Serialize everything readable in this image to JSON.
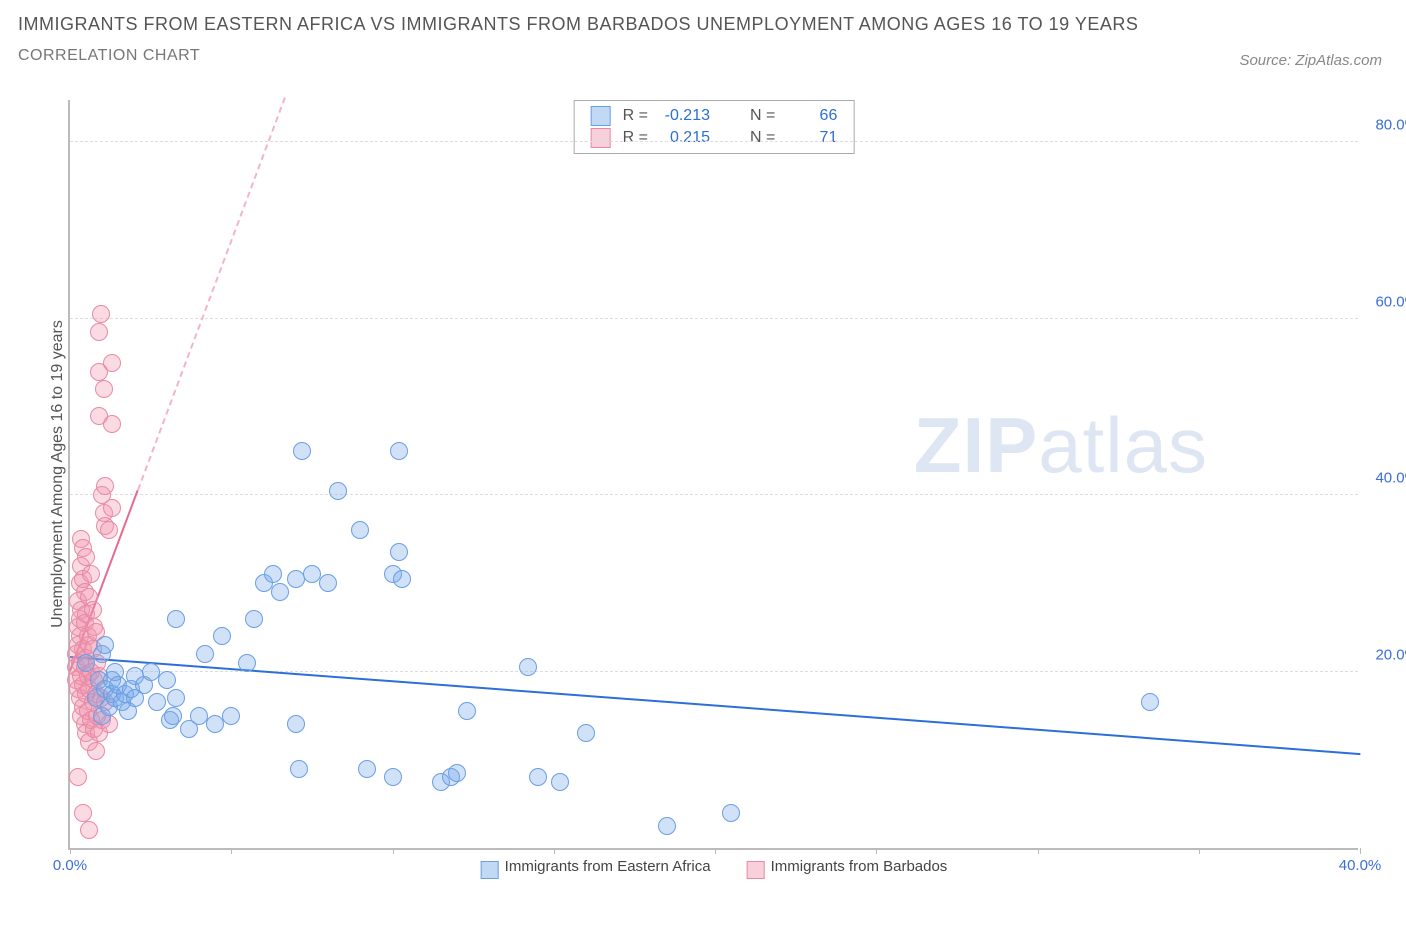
{
  "meta": {
    "title": "IMMIGRANTS FROM EASTERN AFRICA VS IMMIGRANTS FROM BARBADOS UNEMPLOYMENT AMONG AGES 16 TO 19 YEARS",
    "subtitle": "CORRELATION CHART",
    "source": "Source: ZipAtlas.com",
    "watermark_a": "ZIP",
    "watermark_b": "atlas"
  },
  "chart": {
    "type": "scatter",
    "background_color": "#ffffff",
    "grid_color": "#dddddd",
    "axis_color": "#bbbbbb",
    "xlim": [
      0,
      40
    ],
    "ylim": [
      0,
      85
    ],
    "xticks": [
      0,
      5,
      10,
      15,
      20,
      25,
      30,
      35,
      40
    ],
    "xtick_labels": {
      "0": "0.0%",
      "40": "40.0%"
    },
    "yticks": [
      20,
      40,
      60,
      80
    ],
    "ytick_labels": {
      "20": "20.0%",
      "40": "40.0%",
      "60": "60.0%",
      "80": "80.0%"
    },
    "ylabel": "Unemployment Among Ages 16 to 19 years",
    "marker_radius": 9,
    "series": [
      {
        "key": "blue",
        "label": "Immigrants from Eastern Africa",
        "color_fill": "rgba(120,170,235,0.35)",
        "color_stroke": "#6a9fe3",
        "trend_color": "#2c6fd6",
        "R": "-0.213",
        "N": "66",
        "trend": {
          "x1": 0,
          "y1": 21.5,
          "x2": 40,
          "y2": 10.5,
          "extrapolate": false
        },
        "points": [
          [
            0.5,
            21
          ],
          [
            0.8,
            17
          ],
          [
            0.9,
            19
          ],
          [
            1.0,
            15
          ],
          [
            1.0,
            22
          ],
          [
            1.1,
            23
          ],
          [
            1.1,
            18
          ],
          [
            1.2,
            16
          ],
          [
            1.3,
            19
          ],
          [
            1.3,
            17.5
          ],
          [
            1.4,
            20
          ],
          [
            1.4,
            17
          ],
          [
            1.5,
            18.5
          ],
          [
            1.6,
            16.5
          ],
          [
            1.7,
            17.5
          ],
          [
            1.8,
            15.5
          ],
          [
            1.9,
            18
          ],
          [
            2.0,
            17
          ],
          [
            2.0,
            19.5
          ],
          [
            2.3,
            18.5
          ],
          [
            2.5,
            20
          ],
          [
            2.7,
            16.5
          ],
          [
            3.1,
            14.5
          ],
          [
            3.0,
            19
          ],
          [
            3.2,
            15
          ],
          [
            3.3,
            17
          ],
          [
            3.7,
            13.5
          ],
          [
            3.3,
            26
          ],
          [
            4.0,
            15
          ],
          [
            4.2,
            22
          ],
          [
            4.5,
            14
          ],
          [
            4.7,
            24
          ],
          [
            5.0,
            15
          ],
          [
            5.5,
            21
          ],
          [
            5.7,
            26
          ],
          [
            6.0,
            30
          ],
          [
            6.3,
            31
          ],
          [
            6.5,
            29
          ],
          [
            7.0,
            14
          ],
          [
            7.1,
            9
          ],
          [
            7.0,
            30.5
          ],
          [
            7.5,
            31
          ],
          [
            8.0,
            30
          ],
          [
            7.2,
            45
          ],
          [
            8.3,
            40.5
          ],
          [
            9.0,
            36
          ],
          [
            10.0,
            31
          ],
          [
            10.2,
            33.5
          ],
          [
            10.3,
            30.5
          ],
          [
            9.2,
            9
          ],
          [
            10.0,
            8
          ],
          [
            10.2,
            45
          ],
          [
            11.5,
            7.5
          ],
          [
            11.8,
            8
          ],
          [
            12.0,
            8.5
          ],
          [
            12.3,
            15.5
          ],
          [
            14.2,
            20.5
          ],
          [
            14.5,
            8
          ],
          [
            15.2,
            7.5
          ],
          [
            16.0,
            13
          ],
          [
            18.5,
            2.5
          ],
          [
            20.5,
            4
          ],
          [
            33.5,
            16.5
          ]
        ]
      },
      {
        "key": "pink",
        "label": "Immigrants from Barbados",
        "color_fill": "rgba(240,150,175,0.35)",
        "color_stroke": "#e88aa5",
        "trend_color": "#e56b92",
        "R": "0.215",
        "N": "71",
        "trend": {
          "x1": 0,
          "y1": 20,
          "x2": 2.1,
          "y2": 40.5,
          "extrapolate": true
        },
        "points": [
          [
            0.2,
            19
          ],
          [
            0.2,
            20.5
          ],
          [
            0.2,
            22
          ],
          [
            0.25,
            18
          ],
          [
            0.25,
            23
          ],
          [
            0.25,
            25
          ],
          [
            0.25,
            28
          ],
          [
            0.3,
            17
          ],
          [
            0.3,
            21
          ],
          [
            0.3,
            24
          ],
          [
            0.3,
            26
          ],
          [
            0.3,
            30
          ],
          [
            0.35,
            15
          ],
          [
            0.35,
            19.5
          ],
          [
            0.35,
            27
          ],
          [
            0.35,
            32
          ],
          [
            0.35,
            35
          ],
          [
            0.4,
            16
          ],
          [
            0.4,
            18.5
          ],
          [
            0.4,
            22.5
          ],
          [
            0.4,
            30.5
          ],
          [
            0.4,
            34
          ],
          [
            0.45,
            14
          ],
          [
            0.45,
            20.5
          ],
          [
            0.45,
            25.5
          ],
          [
            0.45,
            29
          ],
          [
            0.5,
            13
          ],
          [
            0.5,
            17.5
          ],
          [
            0.5,
            21.5
          ],
          [
            0.5,
            26.5
          ],
          [
            0.5,
            33
          ],
          [
            0.55,
            15.5
          ],
          [
            0.55,
            19.5
          ],
          [
            0.55,
            24
          ],
          [
            0.6,
            12
          ],
          [
            0.6,
            18
          ],
          [
            0.6,
            23
          ],
          [
            0.6,
            28.5
          ],
          [
            0.65,
            14.5
          ],
          [
            0.65,
            20
          ],
          [
            0.65,
            31
          ],
          [
            0.7,
            16.5
          ],
          [
            0.7,
            22.5
          ],
          [
            0.7,
            27
          ],
          [
            0.75,
            13.5
          ],
          [
            0.75,
            19
          ],
          [
            0.75,
            25
          ],
          [
            0.8,
            11
          ],
          [
            0.8,
            17.5
          ],
          [
            0.8,
            24.5
          ],
          [
            0.85,
            15
          ],
          [
            0.85,
            21
          ],
          [
            0.9,
            13
          ],
          [
            0.9,
            19.5
          ],
          [
            0.95,
            17
          ],
          [
            1.0,
            40
          ],
          [
            1.0,
            14.5
          ],
          [
            1.05,
            38
          ],
          [
            1.1,
            16.5
          ],
          [
            1.1,
            36.5
          ],
          [
            1.1,
            41
          ],
          [
            1.2,
            14
          ],
          [
            1.2,
            36
          ],
          [
            1.3,
            38.5
          ],
          [
            1.3,
            48
          ],
          [
            1.3,
            55
          ],
          [
            0.9,
            49
          ],
          [
            0.9,
            54
          ],
          [
            1.05,
            52
          ],
          [
            0.9,
            58.5
          ],
          [
            0.95,
            60.5
          ],
          [
            0.25,
            8
          ],
          [
            0.4,
            4
          ],
          [
            0.6,
            2
          ]
        ]
      }
    ],
    "stat_legend": {
      "R_label": "R =",
      "N_label": "N ="
    },
    "fontsize_title": 18,
    "fontsize_axis": 15,
    "fontsize_legend": 16
  }
}
